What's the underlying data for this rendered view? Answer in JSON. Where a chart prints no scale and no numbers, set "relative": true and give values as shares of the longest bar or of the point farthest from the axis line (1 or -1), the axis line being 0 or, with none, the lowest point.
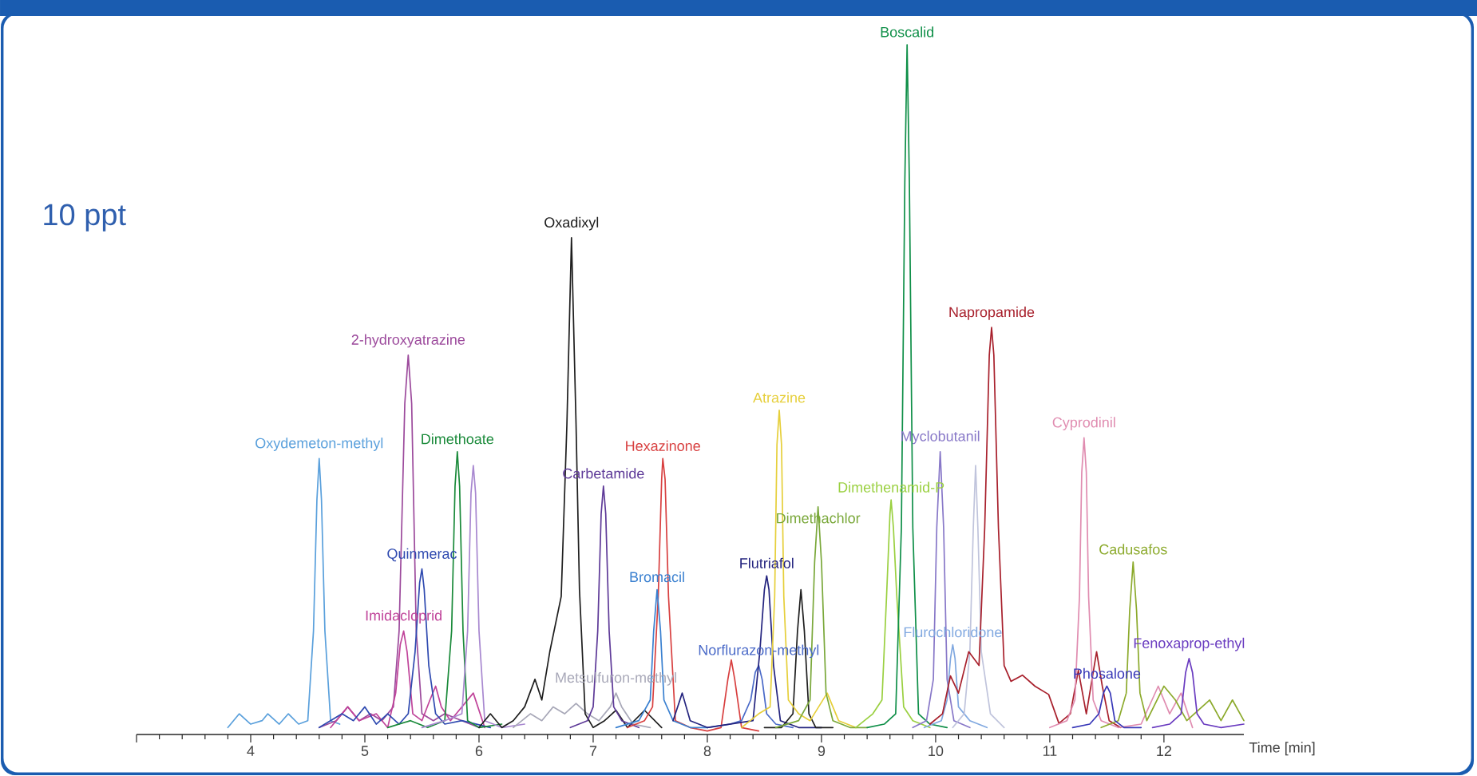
{
  "chart_data": {
    "type": "line",
    "relative": true,
    "xlabel": "Time [min]",
    "xlim": [
      3,
      12.7
    ],
    "xticks": [
      {
        "value": 3,
        "label": null
      },
      4,
      5,
      6,
      7,
      8,
      9,
      10,
      11,
      12
    ],
    "annotations": [
      "10 ppt"
    ],
    "series": [
      {
        "name": "Oxydemeton-methyl",
        "color": "#5aa0dc",
        "x": [
          3.8,
          3.9,
          4.0,
          4.1,
          4.15,
          4.25,
          4.33,
          4.42,
          4.5,
          4.55,
          4.58,
          4.6,
          4.62,
          4.65,
          4.7,
          4.78
        ],
        "values": [
          0.01,
          0.03,
          0.015,
          0.02,
          0.03,
          0.015,
          0.03,
          0.015,
          0.02,
          0.15,
          0.34,
          0.4,
          0.34,
          0.15,
          0.02,
          0.015
        ]
      },
      {
        "name": "2-hydroxyatrazine",
        "color": "#9c4a9c",
        "x": [
          4.6,
          4.75,
          4.85,
          4.95,
          5.05,
          5.15,
          5.25,
          5.3,
          5.35,
          5.38,
          5.41,
          5.45,
          5.5,
          5.6,
          5.7,
          5.85,
          6.0
        ],
        "values": [
          0.01,
          0.02,
          0.04,
          0.02,
          0.03,
          0.02,
          0.04,
          0.15,
          0.48,
          0.55,
          0.48,
          0.15,
          0.03,
          0.02,
          0.03,
          0.02,
          0.01
        ]
      },
      {
        "name": "Imidacloprid",
        "color": "#c0449a",
        "x": [
          4.7,
          4.85,
          4.95,
          5.1,
          5.2,
          5.27,
          5.31,
          5.34,
          5.37,
          5.42,
          5.5,
          5.57,
          5.62,
          5.67,
          5.75,
          5.95,
          6.05
        ],
        "values": [
          0.01,
          0.04,
          0.02,
          0.03,
          0.01,
          0.06,
          0.13,
          0.15,
          0.12,
          0.03,
          0.02,
          0.05,
          0.07,
          0.04,
          0.02,
          0.06,
          0.01
        ]
      },
      {
        "name": "Quinmerac",
        "color": "#2f4ab0",
        "x": [
          4.6,
          4.8,
          4.9,
          5.0,
          5.1,
          5.2,
          5.3,
          5.38,
          5.44,
          5.48,
          5.5,
          5.52,
          5.56,
          5.62,
          5.7,
          5.85,
          6.1
        ],
        "values": [
          0.01,
          0.03,
          0.02,
          0.04,
          0.015,
          0.03,
          0.015,
          0.03,
          0.12,
          0.22,
          0.24,
          0.21,
          0.1,
          0.03,
          0.015,
          0.02,
          0.01
        ]
      },
      {
        "name": "Dimethoate",
        "color": "#1a8a3a",
        "x": [
          5.2,
          5.4,
          5.55,
          5.7,
          5.76,
          5.79,
          5.81,
          5.83,
          5.86,
          5.9,
          6.0,
          6.2
        ],
        "values": [
          0.01,
          0.02,
          0.01,
          0.02,
          0.15,
          0.36,
          0.41,
          0.36,
          0.15,
          0.02,
          0.01,
          0.015
        ]
      },
      {
        "color": "#a888d0",
        "x": [
          5.5,
          5.7,
          5.85,
          5.9,
          5.93,
          5.95,
          5.97,
          6.0,
          6.05,
          6.2,
          6.4
        ],
        "values": [
          0.01,
          0.02,
          0.03,
          0.15,
          0.35,
          0.39,
          0.35,
          0.15,
          0.02,
          0.01,
          0.015
        ]
      },
      {
        "name": "Metsulfuron-methyl",
        "color": "#a8a8b8",
        "x": [
          6.3,
          6.45,
          6.55,
          6.65,
          6.75,
          6.85,
          6.95,
          7.05,
          7.15,
          7.2,
          7.25,
          7.35,
          7.5
        ],
        "values": [
          0.01,
          0.03,
          0.02,
          0.04,
          0.03,
          0.045,
          0.03,
          0.02,
          0.04,
          0.06,
          0.04,
          0.015,
          0.01
        ]
      },
      {
        "name": "Oxadixyl",
        "color": "#1e1e1e",
        "x": [
          6.0,
          6.1,
          6.2,
          6.3,
          6.4,
          6.49,
          6.55,
          6.62,
          6.67,
          6.72,
          6.77,
          6.81,
          6.85,
          6.88,
          6.93,
          7.0,
          7.1,
          7.2,
          7.3,
          7.45,
          7.6
        ],
        "values": [
          0.01,
          0.03,
          0.01,
          0.02,
          0.04,
          0.08,
          0.05,
          0.12,
          0.16,
          0.2,
          0.45,
          0.72,
          0.45,
          0.21,
          0.03,
          0.01,
          0.02,
          0.035,
          0.01,
          0.035,
          0.01
        ]
      },
      {
        "name": "Carbetamide",
        "color": "#5e3a98",
        "x": [
          6.8,
          6.95,
          7.0,
          7.04,
          7.07,
          7.09,
          7.11,
          7.14,
          7.18,
          7.25,
          7.4
        ],
        "values": [
          0.01,
          0.02,
          0.04,
          0.15,
          0.32,
          0.36,
          0.32,
          0.15,
          0.04,
          0.02,
          0.01
        ]
      },
      {
        "name": "Hexazinone",
        "color": "#d84040",
        "x": [
          7.3,
          7.45,
          7.52,
          7.57,
          7.6,
          7.61,
          7.63,
          7.66,
          7.72,
          7.85,
          8.0,
          8.12,
          8.18,
          8.21,
          8.24,
          8.3,
          8.45
        ],
        "values": [
          0.01,
          0.02,
          0.04,
          0.2,
          0.37,
          0.4,
          0.37,
          0.2,
          0.02,
          0.01,
          0.005,
          0.01,
          0.08,
          0.108,
          0.08,
          0.01,
          0.005
        ]
      },
      {
        "name": "Bromacil",
        "color": "#3a80d0",
        "x": [
          7.2,
          7.4,
          7.5,
          7.53,
          7.56,
          7.59,
          7.62,
          7.7,
          7.85,
          8.0
        ],
        "values": [
          0.01,
          0.02,
          0.05,
          0.15,
          0.21,
          0.15,
          0.05,
          0.02,
          0.01,
          0.01
        ]
      },
      {
        "name": "Norflurazon-methyl",
        "color": "#4a6ac8",
        "x": [
          8.0,
          8.2,
          8.3,
          8.38,
          8.42,
          8.45,
          8.48,
          8.52,
          8.6,
          8.75
        ],
        "values": [
          0.01,
          0.015,
          0.02,
          0.05,
          0.09,
          0.1,
          0.08,
          0.03,
          0.015,
          0.01
        ]
      },
      {
        "name": "Flutriafol",
        "color": "#23237e",
        "x": [
          7.7,
          7.78,
          7.85,
          8.0,
          8.2,
          8.4,
          8.46,
          8.5,
          8.52,
          8.54,
          8.58,
          8.64,
          8.8,
          9.0
        ],
        "values": [
          0.02,
          0.06,
          0.02,
          0.01,
          0.015,
          0.02,
          0.12,
          0.21,
          0.23,
          0.21,
          0.1,
          0.02,
          0.01,
          0.01
        ]
      },
      {
        "color": "#202020",
        "x": [
          8.5,
          8.65,
          8.75,
          8.79,
          8.82,
          8.85,
          8.89,
          8.95,
          9.1
        ],
        "values": [
          0.01,
          0.01,
          0.03,
          0.15,
          0.21,
          0.15,
          0.03,
          0.01,
          0.01
        ]
      },
      {
        "name": "Atrazine",
        "color": "#e6cf3a",
        "x": [
          8.3,
          8.45,
          8.55,
          8.59,
          8.61,
          8.63,
          8.65,
          8.67,
          8.71,
          8.8,
          8.9,
          9.05,
          9.15,
          9.3
        ],
        "values": [
          0.01,
          0.03,
          0.04,
          0.2,
          0.42,
          0.47,
          0.42,
          0.2,
          0.05,
          0.03,
          0.02,
          0.06,
          0.02,
          0.01
        ]
      },
      {
        "name": "Dimethachlor",
        "color": "#7aa83a",
        "x": [
          8.6,
          8.8,
          8.9,
          8.94,
          8.97,
          9.0,
          9.04,
          9.1,
          9.25,
          9.4
        ],
        "values": [
          0.01,
          0.02,
          0.05,
          0.25,
          0.33,
          0.25,
          0.06,
          0.02,
          0.01,
          0.01
        ]
      },
      {
        "name": "Dimethenamid-P",
        "color": "#9ad040",
        "x": [
          9.3,
          9.45,
          9.53,
          9.57,
          9.6,
          9.61,
          9.63,
          9.66,
          9.72,
          9.8,
          9.95
        ],
        "values": [
          0.01,
          0.03,
          0.05,
          0.2,
          0.32,
          0.34,
          0.3,
          0.2,
          0.04,
          0.02,
          0.01
        ]
      },
      {
        "name": "Boscalid",
        "color": "#0f8f48",
        "x": [
          9.4,
          9.55,
          9.65,
          9.7,
          9.73,
          9.75,
          9.77,
          9.8,
          9.85,
          9.95,
          10.1
        ],
        "values": [
          0.01,
          0.015,
          0.03,
          0.3,
          0.8,
          1.0,
          0.8,
          0.3,
          0.03,
          0.015,
          0.01
        ]
      },
      {
        "name": "Myclobutanil",
        "color": "#8878c8",
        "x": [
          9.8,
          9.92,
          9.98,
          10.01,
          10.04,
          10.07,
          10.1,
          10.16,
          10.3
        ],
        "values": [
          0.01,
          0.02,
          0.08,
          0.3,
          0.41,
          0.3,
          0.08,
          0.02,
          0.01
        ]
      },
      {
        "name": "Flurochloridone",
        "color": "#80a8e0",
        "x": [
          9.9,
          10.05,
          10.1,
          10.13,
          10.15,
          10.17,
          10.2,
          10.3,
          10.45
        ],
        "values": [
          0.01,
          0.02,
          0.05,
          0.11,
          0.13,
          0.11,
          0.04,
          0.02,
          0.01
        ]
      },
      {
        "color": "#c0c4dc",
        "x": [
          10.15,
          10.25,
          10.3,
          10.33,
          10.35,
          10.37,
          10.4,
          10.48,
          10.6
        ],
        "values": [
          0.01,
          0.03,
          0.12,
          0.3,
          0.39,
          0.3,
          0.12,
          0.03,
          0.01
        ]
      },
      {
        "name": "Napropamide",
        "color": "#a8202c",
        "x": [
          9.95,
          10.06,
          10.13,
          10.2,
          10.29,
          10.38,
          10.43,
          10.47,
          10.49,
          10.51,
          10.55,
          10.6,
          10.66,
          10.76,
          10.87,
          10.99,
          11.08,
          11.18,
          11.25,
          11.32,
          11.41,
          11.46,
          11.52,
          11.62
        ],
        "values": [
          0.015,
          0.03,
          0.085,
          0.06,
          0.12,
          0.1,
          0.3,
          0.55,
          0.59,
          0.55,
          0.3,
          0.1,
          0.077,
          0.086,
          0.07,
          0.058,
          0.016,
          0.03,
          0.093,
          0.03,
          0.12,
          0.07,
          0.02,
          0.01
        ]
      },
      {
        "name": "Cyprodinil",
        "color": "#e08cb0",
        "x": [
          11.0,
          11.15,
          11.22,
          11.26,
          11.28,
          11.3,
          11.32,
          11.34,
          11.38,
          11.45,
          11.6,
          11.8,
          11.95,
          12.05,
          12.15,
          12.25
        ],
        "values": [
          0.01,
          0.02,
          0.05,
          0.2,
          0.38,
          0.43,
          0.38,
          0.2,
          0.05,
          0.02,
          0.01,
          0.015,
          0.07,
          0.03,
          0.06,
          0.01
        ]
      },
      {
        "name": "Cadusafos",
        "color": "#8caa2c",
        "x": [
          11.45,
          11.6,
          11.67,
          11.7,
          11.73,
          11.76,
          11.79,
          11.85,
          12.0,
          12.1,
          12.2,
          12.4,
          12.5,
          12.6,
          12.7
        ],
        "values": [
          0.01,
          0.02,
          0.06,
          0.18,
          0.25,
          0.18,
          0.06,
          0.02,
          0.07,
          0.05,
          0.02,
          0.05,
          0.02,
          0.05,
          0.02
        ]
      },
      {
        "name": "Phosalone",
        "color": "#3838b8",
        "x": [
          11.2,
          11.35,
          11.43,
          11.47,
          11.5,
          11.53,
          11.57,
          11.65,
          11.8
        ],
        "values": [
          0.01,
          0.015,
          0.03,
          0.06,
          0.07,
          0.06,
          0.02,
          0.01,
          0.01
        ]
      },
      {
        "name": "Fenoxaprop-ethyl",
        "color": "#6a3cc0",
        "x": [
          11.9,
          12.05,
          12.15,
          12.19,
          12.22,
          12.25,
          12.29,
          12.35,
          12.5,
          12.7
        ],
        "values": [
          0.01,
          0.015,
          0.03,
          0.09,
          0.11,
          0.09,
          0.03,
          0.015,
          0.01,
          0.015
        ]
      }
    ]
  }
}
